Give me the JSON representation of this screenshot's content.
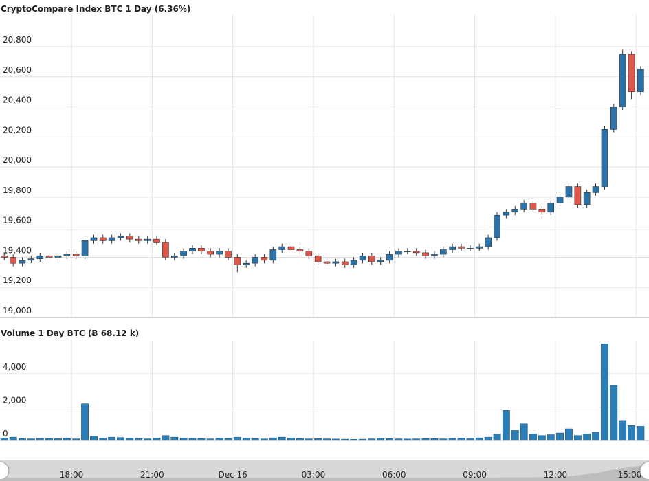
{
  "chart_data": [
    {
      "type": "candlestick",
      "title": "CryptoCompare Index BTC 1 Day (6.36%)",
      "x": [
        15.5,
        15.83,
        16.17,
        16.5,
        16.83,
        17.17,
        17.5,
        17.83,
        18.17,
        18.5,
        18.83,
        19.17,
        19.5,
        19.83,
        20.17,
        20.5,
        20.83,
        21.17,
        21.5,
        21.83,
        22.17,
        22.5,
        22.83,
        23.17,
        23.5,
        23.83,
        24.17,
        24.5,
        24.83,
        25.17,
        25.5,
        25.83,
        26.17,
        26.5,
        26.83,
        27.17,
        27.5,
        27.83,
        28.17,
        28.5,
        28.83,
        29.17,
        29.5,
        29.83,
        30.17,
        30.5,
        30.83,
        31.17,
        31.5,
        31.83,
        32.17,
        32.5,
        32.83,
        33.17,
        33.5,
        33.83,
        34.17,
        34.5,
        34.83,
        35.17,
        35.5,
        35.83,
        36.17,
        36.5,
        36.83,
        37.17,
        37.5,
        37.83,
        38.17,
        38.5,
        38.83,
        39.17
      ],
      "open": [
        19410,
        19400,
        19360,
        19380,
        19390,
        19410,
        19400,
        19410,
        19420,
        19410,
        19510,
        19530,
        19510,
        19530,
        19540,
        19520,
        19510,
        19520,
        19500,
        19400,
        19410,
        19440,
        19460,
        19440,
        19420,
        19440,
        19400,
        19350,
        19360,
        19400,
        19380,
        19450,
        19470,
        19450,
        19440,
        19410,
        19370,
        19360,
        19370,
        19350,
        19380,
        19410,
        19370,
        19380,
        19420,
        19440,
        19440,
        19430,
        19410,
        19420,
        19450,
        19470,
        19460,
        19460,
        19470,
        19530,
        19680,
        19700,
        19720,
        19760,
        19720,
        19700,
        19760,
        19800,
        19870,
        19750,
        19830,
        19870,
        20250,
        20400,
        20750,
        20500
      ],
      "high": [
        19430,
        19420,
        19400,
        19410,
        19430,
        19430,
        19430,
        19440,
        19440,
        19530,
        19550,
        19550,
        19550,
        19560,
        19560,
        19540,
        19540,
        19540,
        19520,
        19430,
        19460,
        19480,
        19480,
        19460,
        19460,
        19460,
        19420,
        19380,
        19420,
        19420,
        19470,
        19490,
        19490,
        19470,
        19460,
        19430,
        19390,
        19390,
        19390,
        19400,
        19430,
        19430,
        19400,
        19440,
        19460,
        19460,
        19460,
        19450,
        19440,
        19470,
        19490,
        19490,
        19480,
        19490,
        19550,
        19700,
        19720,
        19740,
        19780,
        19780,
        19740,
        19780,
        19820,
        19890,
        19890,
        19850,
        19890,
        20270,
        20420,
        20780,
        20770,
        20670
      ],
      "low": [
        19380,
        19340,
        19340,
        19360,
        19370,
        19380,
        19380,
        19390,
        19390,
        19390,
        19490,
        19490,
        19490,
        19510,
        19500,
        19490,
        19490,
        19480,
        19380,
        19380,
        19390,
        19420,
        19420,
        19400,
        19400,
        19380,
        19300,
        19330,
        19340,
        19360,
        19360,
        19430,
        19430,
        19420,
        19390,
        19350,
        19340,
        19340,
        19330,
        19330,
        19360,
        19350,
        19350,
        19360,
        19400,
        19420,
        19410,
        19390,
        19390,
        19400,
        19430,
        19440,
        19440,
        19440,
        19450,
        19510,
        19660,
        19680,
        19700,
        19700,
        19680,
        19680,
        19740,
        19780,
        19730,
        19730,
        19810,
        19850,
        20230,
        20380,
        20450,
        20480
      ],
      "close": [
        19400,
        19360,
        19380,
        19390,
        19410,
        19400,
        19410,
        19420,
        19410,
        19510,
        19530,
        19510,
        19530,
        19540,
        19520,
        19510,
        19520,
        19500,
        19400,
        19410,
        19440,
        19460,
        19440,
        19420,
        19440,
        19400,
        19350,
        19360,
        19400,
        19380,
        19450,
        19470,
        19450,
        19440,
        19410,
        19370,
        19360,
        19370,
        19350,
        19380,
        19410,
        19370,
        19380,
        19420,
        19440,
        19440,
        19430,
        19410,
        19420,
        19450,
        19470,
        19460,
        19460,
        19470,
        19530,
        19680,
        19700,
        19720,
        19760,
        19720,
        19700,
        19760,
        19800,
        19870,
        19750,
        19830,
        19870,
        20250,
        20400,
        20750,
        20500,
        20650
      ],
      "up_color": "#2b72a8",
      "down_color": "#e0584b",
      "xlim": [
        15.34,
        39.48
      ],
      "xticks": [
        {
          "value": 18,
          "label": "18:00"
        },
        {
          "value": 21,
          "label": "21:00"
        },
        {
          "value": 24,
          "label": "Dec 16"
        },
        {
          "value": 27,
          "label": "03:00"
        },
        {
          "value": 30,
          "label": "06:00"
        },
        {
          "value": 33,
          "label": "09:00"
        },
        {
          "value": 36,
          "label": "12:00"
        },
        {
          "value": 39,
          "label": "15:00"
        }
      ],
      "ylim": [
        19000,
        21010
      ],
      "yticks": [
        {
          "value": 19000,
          "label": "19,000"
        },
        {
          "value": 19200,
          "label": "19,200"
        },
        {
          "value": 19400,
          "label": "19,400"
        },
        {
          "value": 19600,
          "label": "19,600"
        },
        {
          "value": 19800,
          "label": "19,800"
        },
        {
          "value": 20000,
          "label": "20,000"
        },
        {
          "value": 20200,
          "label": "20,200"
        },
        {
          "value": 20400,
          "label": "20,400"
        },
        {
          "value": 20600,
          "label": "20,600"
        },
        {
          "value": 20800,
          "label": "20,800"
        }
      ],
      "grid": true
    },
    {
      "type": "bar",
      "title": "Volume 1 Day BTC (Ƀ 68.12 k)",
      "x": [
        15.5,
        15.83,
        16.17,
        16.5,
        16.83,
        17.17,
        17.5,
        17.83,
        18.17,
        18.5,
        18.83,
        19.17,
        19.5,
        19.83,
        20.17,
        20.5,
        20.83,
        21.17,
        21.5,
        21.83,
        22.17,
        22.5,
        22.83,
        23.17,
        23.5,
        23.83,
        24.17,
        24.5,
        24.83,
        25.17,
        25.5,
        25.83,
        26.17,
        26.5,
        26.83,
        27.17,
        27.5,
        27.83,
        28.17,
        28.5,
        28.83,
        29.17,
        29.5,
        29.83,
        30.17,
        30.5,
        30.83,
        31.17,
        31.5,
        31.83,
        32.17,
        32.5,
        32.83,
        33.17,
        33.5,
        33.83,
        34.17,
        34.5,
        34.83,
        35.17,
        35.5,
        35.83,
        36.17,
        36.5,
        36.83,
        37.17,
        37.5,
        37.83,
        38.17,
        38.5,
        38.83,
        39.17
      ],
      "values": [
        150,
        200,
        120,
        100,
        130,
        120,
        110,
        150,
        100,
        2200,
        250,
        150,
        200,
        180,
        150,
        120,
        100,
        150,
        300,
        200,
        150,
        130,
        120,
        100,
        150,
        120,
        200,
        150,
        120,
        100,
        160,
        200,
        150,
        120,
        100,
        110,
        100,
        90,
        80,
        70,
        80,
        100,
        120,
        110,
        100,
        90,
        100,
        120,
        110,
        100,
        130,
        150,
        140,
        160,
        200,
        400,
        1800,
        600,
        1000,
        400,
        300,
        350,
        450,
        700,
        300,
        400,
        500,
        5800,
        3300,
        1200,
        900,
        850
      ],
      "color": "#2a7db5",
      "ylim": [
        0,
        6020
      ],
      "yticks": [
        0,
        {
          "value": 2000,
          "label": "2,000"
        },
        {
          "value": 4000,
          "label": "4,000"
        }
      ],
      "grid": true
    }
  ]
}
